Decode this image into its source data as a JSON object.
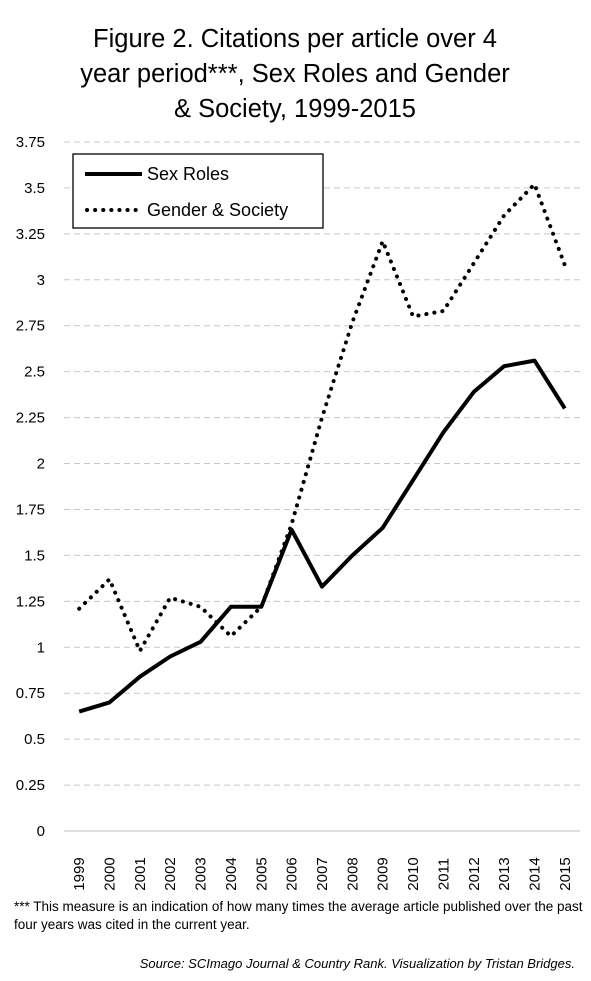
{
  "title_lines": [
    "Figure 2. Citations per article over 4",
    "year period***, Sex Roles and Gender",
    "& Society, 1999-2015"
  ],
  "footnote": "*** This measure is an indication of how many times the average article published over the past four years was cited in the current year.",
  "source": "Source: SCImago Journal & Country Rank.  Visualization by Tristan Bridges.",
  "chart_data": {
    "type": "line",
    "x": [
      "1999",
      "2000",
      "2001",
      "2002",
      "2003",
      "2004",
      "2005",
      "2006",
      "2007",
      "2008",
      "2009",
      "2010",
      "2011",
      "2012",
      "2013",
      "2014",
      "2015"
    ],
    "y_ticks": [
      "0",
      "0.25",
      "0.5",
      "0.75",
      "1",
      "1.25",
      "1.5",
      "1.75",
      "2",
      "2.25",
      "2.5",
      "2.75",
      "3",
      "3.25",
      "3.5",
      "3.75"
    ],
    "ylim": [
      0,
      3.75
    ],
    "grid": true,
    "legend_position": "top-left",
    "series": [
      {
        "name": "Sex Roles",
        "style": "solid",
        "color": "#000000",
        "values": [
          0.65,
          0.7,
          0.84,
          0.95,
          1.03,
          1.22,
          1.22,
          1.64,
          1.33,
          1.5,
          1.65,
          1.91,
          2.17,
          2.39,
          2.53,
          2.56,
          2.3
        ]
      },
      {
        "name": "Gender & Society",
        "style": "dotted",
        "color": "#000000",
        "values": [
          1.21,
          1.37,
          0.98,
          1.27,
          1.22,
          1.06,
          1.22,
          1.67,
          2.25,
          2.77,
          3.21,
          2.8,
          2.83,
          3.09,
          3.35,
          3.52,
          3.08
        ]
      }
    ]
  }
}
